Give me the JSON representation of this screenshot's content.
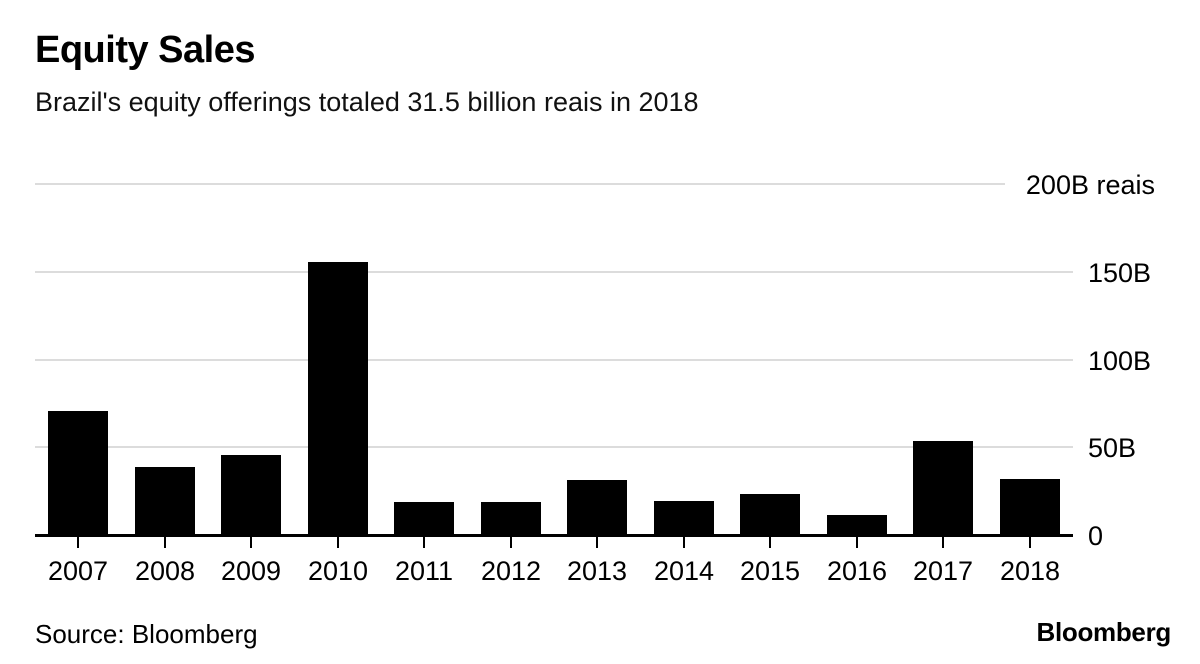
{
  "header": {
    "title": "Equity Sales",
    "subtitle": "Brazil's equity offerings totaled 31.5 billion reais in 2018"
  },
  "footer": {
    "source": "Source: Bloomberg",
    "logo": "Bloomberg"
  },
  "chart_data": {
    "type": "bar",
    "title": "Equity Sales",
    "subtitle": "Brazil's equity offerings totaled 31.5 billion reais in 2018",
    "categories": [
      "2007",
      "2008",
      "2009",
      "2010",
      "2011",
      "2012",
      "2013",
      "2014",
      "2015",
      "2016",
      "2017",
      "2018"
    ],
    "values": [
      70,
      38,
      45,
      155,
      18,
      18,
      31,
      19,
      23,
      11,
      53,
      31.5
    ],
    "unit": "B reais",
    "ylim": [
      0,
      200
    ],
    "y_ticks": [
      {
        "value": 200,
        "label": "200B reais"
      },
      {
        "value": 150,
        "label": "150B"
      },
      {
        "value": 100,
        "label": "100B"
      },
      {
        "value": 50,
        "label": "50B"
      },
      {
        "value": 0,
        "label": "0"
      }
    ],
    "grid": "horizontal",
    "legend": "none",
    "axis_label_side": "right",
    "bar_color": "#000000",
    "gridline_color": "#dcdcdc",
    "axis_color": "#000000",
    "background_color": "#ffffff",
    "source": "Source: Bloomberg",
    "brand": "Bloomberg"
  }
}
